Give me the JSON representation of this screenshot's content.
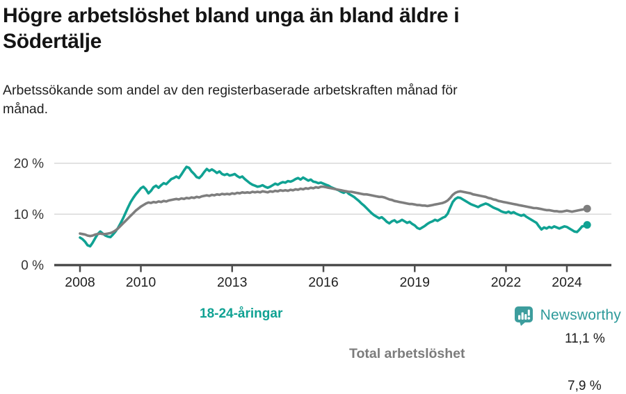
{
  "header": {
    "title_lines": [
      "Högre arbetslöshet bland unga än bland äldre i",
      "Södertälje"
    ],
    "subtitle_lines": [
      "Arbetssökande som andel av den registerbaserade arbetskraften månad för",
      "månad."
    ]
  },
  "footer": {
    "brand": "Newsworthy",
    "logo_icon": "bar-chart-speech-bubble-icon",
    "brand_color": "#2e9a9a"
  },
  "chart_data": {
    "type": "line",
    "title": "Högre arbetslöshet bland unga än bland äldre i Södertälje",
    "subtitle": "Arbetssökande som andel av den registerbaserade arbetskraften månad för månad.",
    "xlabel": "",
    "ylabel": "",
    "ylim": [
      0,
      21
    ],
    "grid": "horizontal-gridlines-at-10-and-20",
    "legend_position": "inline-labels-on-lines",
    "colors": {
      "young": "#10a293",
      "total": "#7e7e7e",
      "gridline": "#d9d9d9",
      "axis": "#4d4d4d",
      "tick_text": "#1f1f1f"
    },
    "y_ticks": [
      {
        "value": 20,
        "label": "20 %",
        "gridline": true
      },
      {
        "value": 10,
        "label": "10 %",
        "gridline": true
      },
      {
        "value": 0,
        "label": "0 %",
        "gridline": false
      }
    ],
    "x_ticks": [
      {
        "year": 2008,
        "label": "2008"
      },
      {
        "year": 2010,
        "label": "2010"
      },
      {
        "year": 2013,
        "label": "2013"
      },
      {
        "year": 2016,
        "label": "2016"
      },
      {
        "year": 2019,
        "label": "2019"
      },
      {
        "year": 2022,
        "label": "2022"
      },
      {
        "year": 2024,
        "label": "2024"
      }
    ],
    "series": [
      {
        "id": "young",
        "name": "18-24-åringar",
        "color": "#10a293",
        "end_value_label": "7,9 %",
        "start_year": 2008,
        "step_months": 1,
        "values": [
          5.4,
          5.1,
          4.6,
          3.9,
          3.7,
          4.4,
          5.3,
          6.1,
          6.6,
          6.2,
          5.8,
          5.6,
          5.5,
          6.0,
          6.6,
          7.3,
          8.2,
          9.2,
          10.3,
          11.4,
          12.4,
          13.2,
          13.9,
          14.5,
          15.1,
          15.4,
          14.9,
          14.1,
          14.6,
          15.3,
          15.6,
          15.2,
          15.7,
          16.1,
          15.9,
          16.4,
          16.9,
          17.1,
          17.4,
          17.1,
          17.8,
          18.6,
          19.3,
          19.1,
          18.4,
          17.9,
          17.3,
          17.1,
          17.6,
          18.3,
          18.9,
          18.5,
          18.8,
          18.5,
          18.1,
          18.4,
          17.9,
          17.7,
          17.9,
          17.6,
          17.7,
          17.9,
          17.5,
          17.2,
          17.4,
          16.9,
          16.5,
          16.1,
          15.8,
          15.6,
          15.4,
          15.5,
          15.7,
          15.4,
          15.2,
          15.4,
          15.7,
          16.0,
          15.8,
          16.1,
          16.3,
          16.2,
          16.5,
          16.4,
          16.6,
          16.9,
          17.1,
          16.8,
          17.2,
          16.9,
          16.6,
          16.8,
          16.4,
          16.3,
          16.1,
          16.2,
          16.0,
          15.8,
          15.6,
          15.3,
          15.1,
          14.9,
          14.7,
          14.4,
          14.2,
          14.5,
          14.0,
          13.7,
          13.4,
          13.0,
          12.6,
          12.1,
          11.7,
          11.2,
          10.7,
          10.2,
          9.8,
          9.5,
          9.2,
          9.4,
          9.0,
          8.5,
          8.2,
          8.6,
          8.8,
          8.4,
          8.6,
          8.9,
          8.6,
          8.3,
          8.5,
          8.1,
          7.8,
          7.3,
          7.1,
          7.4,
          7.7,
          8.1,
          8.4,
          8.6,
          8.9,
          8.7,
          9.0,
          9.3,
          9.5,
          10.1,
          11.3,
          12.4,
          13.0,
          13.3,
          13.2,
          12.9,
          12.6,
          12.3,
          12.0,
          11.8,
          11.6,
          11.4,
          11.7,
          11.9,
          12.1,
          11.9,
          11.6,
          11.3,
          11.1,
          10.9,
          10.6,
          10.4,
          10.3,
          10.5,
          10.2,
          10.4,
          10.1,
          9.9,
          9.7,
          9.9,
          9.5,
          9.2,
          8.9,
          8.6,
          8.3,
          7.6,
          7.0,
          7.4,
          7.2,
          7.5,
          7.3,
          7.6,
          7.4,
          7.2,
          7.4,
          7.6,
          7.5,
          7.2,
          6.9,
          6.6,
          6.5,
          7.0,
          7.6,
          7.7,
          7.9
        ]
      },
      {
        "id": "total",
        "name": "Total arbetslöshet",
        "color": "#7e7e7e",
        "end_value_label": "11,1 %",
        "start_year": 2008,
        "step_months": 1,
        "values": [
          6.2,
          6.1,
          6.0,
          5.8,
          5.7,
          5.8,
          6.0,
          6.1,
          6.2,
          6.1,
          6.1,
          6.2,
          6.3,
          6.5,
          6.8,
          7.2,
          7.7,
          8.2,
          8.7,
          9.2,
          9.7,
          10.2,
          10.7,
          11.1,
          11.5,
          11.8,
          12.1,
          12.3,
          12.2,
          12.4,
          12.3,
          12.5,
          12.4,
          12.6,
          12.5,
          12.7,
          12.8,
          12.9,
          13.0,
          12.9,
          13.1,
          13.0,
          13.2,
          13.1,
          13.3,
          13.2,
          13.4,
          13.3,
          13.5,
          13.6,
          13.7,
          13.6,
          13.8,
          13.7,
          13.9,
          13.8,
          14.0,
          13.9,
          14.0,
          13.9,
          14.1,
          14.0,
          14.2,
          14.1,
          14.3,
          14.2,
          14.3,
          14.2,
          14.4,
          14.3,
          14.4,
          14.3,
          14.5,
          14.4,
          14.3,
          14.5,
          14.4,
          14.6,
          14.5,
          14.7,
          14.6,
          14.7,
          14.6,
          14.8,
          14.7,
          14.9,
          14.8,
          15.0,
          14.9,
          15.1,
          15.0,
          15.2,
          15.1,
          15.3,
          15.2,
          15.4,
          15.4,
          15.3,
          15.2,
          15.1,
          15.0,
          14.9,
          14.8,
          14.7,
          14.6,
          14.5,
          14.4,
          14.4,
          14.3,
          14.2,
          14.1,
          14.0,
          13.9,
          13.9,
          13.8,
          13.7,
          13.6,
          13.5,
          13.4,
          13.4,
          13.3,
          13.1,
          12.9,
          12.8,
          12.6,
          12.5,
          12.4,
          12.3,
          12.2,
          12.1,
          12.0,
          12.0,
          11.9,
          11.8,
          11.8,
          11.7,
          11.7,
          11.6,
          11.7,
          11.8,
          11.9,
          12.0,
          12.1,
          12.2,
          12.4,
          12.7,
          13.2,
          13.8,
          14.2,
          14.4,
          14.5,
          14.4,
          14.3,
          14.2,
          14.1,
          13.9,
          13.8,
          13.7,
          13.6,
          13.5,
          13.4,
          13.2,
          13.1,
          12.9,
          12.8,
          12.6,
          12.5,
          12.4,
          12.3,
          12.2,
          12.1,
          12.0,
          11.9,
          11.8,
          11.7,
          11.6,
          11.5,
          11.4,
          11.3,
          11.2,
          11.2,
          11.1,
          11.0,
          10.9,
          10.8,
          10.8,
          10.7,
          10.6,
          10.6,
          10.5,
          10.5,
          10.6,
          10.7,
          10.6,
          10.5,
          10.6,
          10.7,
          10.8,
          10.9,
          11.0,
          11.1
        ]
      }
    ]
  }
}
